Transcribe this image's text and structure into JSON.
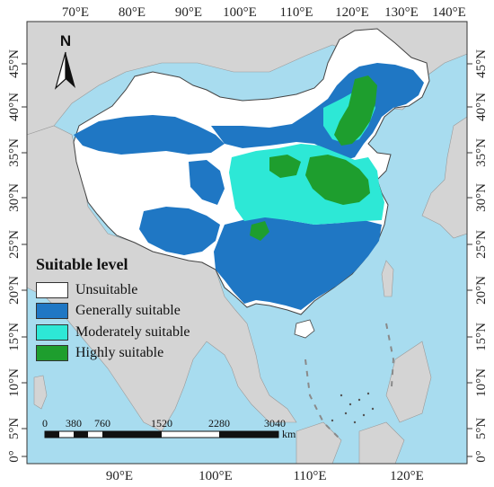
{
  "map": {
    "top_lon_labels": [
      "70°E",
      "80°E",
      "90°E",
      "100°E",
      "110°E",
      "120°E",
      "130°E",
      "140°E"
    ],
    "bottom_lon_labels": [
      "90°E",
      "100°E",
      "110°E",
      "120°E"
    ],
    "left_lat_labels": [
      "45°N",
      "40°N",
      "35°N",
      "30°N",
      "25°N",
      "20°N",
      "15°N",
      "10°N",
      "5°N",
      "0°"
    ],
    "right_lat_labels": [
      "45°N",
      "40°N",
      "35°N",
      "30°N",
      "25°N",
      "20°N",
      "15°N",
      "10°N",
      "5°N",
      "0°"
    ],
    "north_arrow": {
      "letter": "N",
      "icon": "north-arrow-icon"
    }
  },
  "legend": {
    "title": "Suitable level",
    "items": [
      {
        "label": "Unsuitable",
        "color": "#ffffff"
      },
      {
        "label": "Generally suitable",
        "color": "#1f77c4"
      },
      {
        "label": "Moderately suitable",
        "color": "#2de8d6"
      },
      {
        "label": "Highly suitable",
        "color": "#1e9e2e"
      }
    ]
  },
  "scale_bar": {
    "ticks": [
      "0",
      "380",
      "760",
      "1520",
      "2280",
      "3040"
    ],
    "unit": "km"
  },
  "colors": {
    "sea": "#a8dcef",
    "land": "#d4d4d4",
    "border": "#555555"
  }
}
